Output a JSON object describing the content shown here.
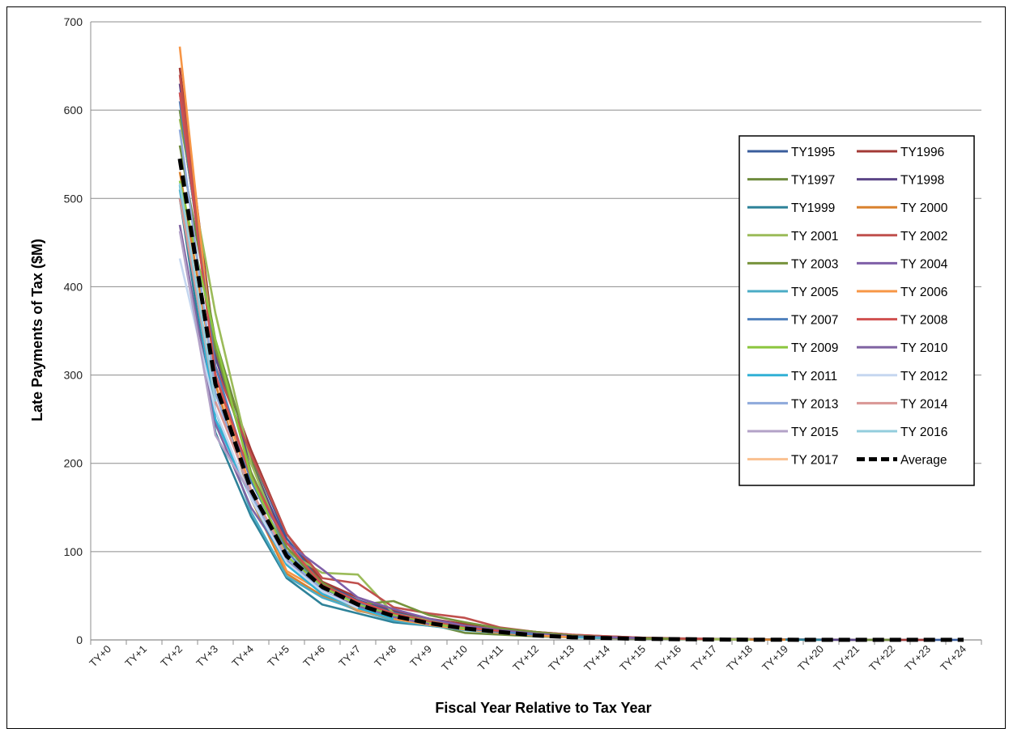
{
  "chart_data": {
    "type": "line",
    "title": "",
    "xlabel": "Fiscal Year Relative to Tax Year",
    "ylabel": "Late Payments of Tax ($M)",
    "ylim": [
      0,
      700
    ],
    "yticks": [
      0,
      100,
      200,
      300,
      400,
      500,
      600,
      700
    ],
    "grid": true,
    "legend_position": "right",
    "categories": [
      "TY+0",
      "TY+1",
      "TY+2",
      "TY+3",
      "TY+4",
      "TY+5",
      "TY+6",
      "TY+7",
      "TY+8",
      "TY+9",
      "TY+10",
      "TY+11",
      "TY+12",
      "TY+13",
      "TY+14",
      "TY+15",
      "TY+16",
      "TY+17",
      "TY+18",
      "TY+19",
      "TY+20",
      "TY+21",
      "TY+22",
      "TY+23",
      "TY+24"
    ],
    "series": [
      {
        "name": "TY1995",
        "color": "#3A5D9C",
        "dashed": false,
        "values": [
          null,
          null,
          600,
          330,
          210,
          115,
          65,
          45,
          32,
          22,
          16,
          12,
          8,
          5,
          3,
          2,
          1.5,
          1,
          0.8,
          0.5,
          0.3,
          0.2,
          0.1,
          0.1,
          0.1
        ]
      },
      {
        "name": "TY1996",
        "color": "#A33A36",
        "dashed": false,
        "values": [
          null,
          null,
          648,
          325,
          215,
          120,
          66,
          48,
          34,
          24,
          18,
          13,
          9,
          6,
          4,
          2.5,
          1.8,
          1.2,
          0.8,
          0.5,
          0.3,
          0.2,
          0.1,
          0.1,
          null
        ]
      },
      {
        "name": "TY1997",
        "color": "#6E8B3D",
        "dashed": false,
        "values": [
          null,
          null,
          560,
          340,
          205,
          105,
          60,
          42,
          28,
          18,
          8,
          6,
          4,
          3,
          2,
          1.5,
          1,
          0.6,
          0.4,
          0.3,
          0.2,
          0.1,
          0.1,
          null,
          null
        ]
      },
      {
        "name": "TY1998",
        "color": "#5B4587",
        "dashed": false,
        "values": [
          null,
          null,
          630,
          320,
          200,
          110,
          62,
          44,
          30,
          20,
          14,
          10,
          7,
          4,
          3,
          2,
          1.4,
          1,
          0.6,
          0.4,
          0.2,
          0.1,
          null,
          null,
          null
        ]
      },
      {
        "name": "TY1999",
        "color": "#2E8299",
        "dashed": false,
        "values": [
          null,
          null,
          500,
          235,
          140,
          70,
          40,
          30,
          20,
          16,
          12,
          9,
          6,
          4,
          3,
          2,
          1.2,
          0.8,
          0.5,
          0.3,
          0.2,
          null,
          null,
          null,
          null
        ]
      },
      {
        "name": "TY 2000",
        "color": "#D9812E",
        "dashed": false,
        "values": [
          null,
          null,
          530,
          290,
          160,
          75,
          50,
          33,
          25,
          18,
          12,
          9,
          6,
          4,
          3,
          2,
          1.2,
          0.8,
          0.5,
          0.3,
          null,
          null,
          null,
          null,
          null
        ]
      },
      {
        "name": "TY 2001",
        "color": "#9BBB59",
        "dashed": false,
        "values": [
          null,
          null,
          590,
          370,
          200,
          100,
          76,
          74,
          30,
          22,
          16,
          11,
          8,
          5,
          3,
          2,
          1.3,
          0.8,
          0.5,
          null,
          null,
          null,
          null,
          null,
          null
        ]
      },
      {
        "name": "TY 2002",
        "color": "#C0504D",
        "dashed": false,
        "values": [
          null,
          null,
          640,
          310,
          210,
          120,
          70,
          64,
          37,
          30,
          25,
          14,
          9,
          6,
          4,
          2.5,
          1.5,
          1,
          null,
          null,
          null,
          null,
          null,
          null,
          null
        ]
      },
      {
        "name": "TY 2003",
        "color": "#77933C",
        "dashed": false,
        "values": [
          null,
          null,
          600,
          330,
          190,
          105,
          65,
          40,
          44,
          28,
          20,
          13,
          9,
          5,
          3,
          2,
          1.2,
          null,
          null,
          null,
          null,
          null,
          null,
          null,
          null
        ]
      },
      {
        "name": "TY 2004",
        "color": "#7F5FA8",
        "dashed": false,
        "values": [
          null,
          null,
          620,
          300,
          180,
          110,
          80,
          48,
          35,
          24,
          16,
          11,
          7,
          4,
          3,
          2,
          null,
          null,
          null,
          null,
          null,
          null,
          null,
          null,
          null
        ]
      },
      {
        "name": "TY 2005",
        "color": "#4BACC6",
        "dashed": false,
        "values": [
          null,
          null,
          510,
          260,
          145,
          72,
          48,
          34,
          22,
          16,
          11,
          8,
          5,
          3,
          2,
          null,
          null,
          null,
          null,
          null,
          null,
          null,
          null,
          null,
          null
        ]
      },
      {
        "name": "TY 2006",
        "color": "#F79646",
        "dashed": false,
        "values": [
          null,
          null,
          672,
          300,
          170,
          78,
          55,
          34,
          24,
          17,
          12,
          8,
          5,
          3,
          null,
          null,
          null,
          null,
          null,
          null,
          null,
          null,
          null,
          null,
          null
        ]
      },
      {
        "name": "TY 2007",
        "color": "#4F81BD",
        "dashed": false,
        "values": [
          null,
          null,
          610,
          310,
          180,
          100,
          58,
          42,
          28,
          19,
          13,
          9,
          6,
          null,
          null,
          null,
          null,
          null,
          null,
          null,
          null,
          null,
          null,
          null,
          null
        ]
      },
      {
        "name": "TY 2008",
        "color": "#D0504F",
        "dashed": false,
        "values": [
          null,
          null,
          620,
          300,
          185,
          110,
          62,
          44,
          30,
          21,
          14,
          10,
          null,
          null,
          null,
          null,
          null,
          null,
          null,
          null,
          null,
          null,
          null,
          null,
          null
        ]
      },
      {
        "name": "TY 2009",
        "color": "#8CC63F",
        "dashed": false,
        "values": [
          null,
          null,
          520,
          340,
          185,
          95,
          60,
          40,
          28,
          19,
          13,
          null,
          null,
          null,
          null,
          null,
          null,
          null,
          null,
          null,
          null,
          null,
          null,
          null,
          null
        ]
      },
      {
        "name": "TY 2010",
        "color": "#8064A2",
        "dashed": false,
        "values": [
          null,
          null,
          470,
          245,
          150,
          90,
          55,
          38,
          26,
          18,
          null,
          null,
          null,
          null,
          null,
          null,
          null,
          null,
          null,
          null,
          null,
          null,
          null,
          null,
          null
        ]
      },
      {
        "name": "TY 2011",
        "color": "#31B0D5",
        "dashed": false,
        "values": [
          null,
          null,
          515,
          250,
          160,
          85,
          52,
          36,
          24,
          null,
          null,
          null,
          null,
          null,
          null,
          null,
          null,
          null,
          null,
          null,
          null,
          null,
          null,
          null,
          null
        ]
      },
      {
        "name": "TY 2012",
        "color": "#C5D7F0",
        "dashed": false,
        "values": [
          null,
          null,
          432,
          260,
          160,
          88,
          55,
          36,
          null,
          null,
          null,
          null,
          null,
          null,
          null,
          null,
          null,
          null,
          null,
          null,
          null,
          null,
          null,
          null,
          null
        ]
      },
      {
        "name": "TY 2013",
        "color": "#8EA9DB",
        "dashed": false,
        "values": [
          null,
          null,
          578,
          280,
          165,
          92,
          58,
          null,
          null,
          null,
          null,
          null,
          null,
          null,
          null,
          null,
          null,
          null,
          null,
          null,
          null,
          null,
          null,
          null,
          null
        ]
      },
      {
        "name": "TY 2014",
        "color": "#D99694",
        "dashed": false,
        "values": [
          null,
          null,
          500,
          270,
          170,
          95,
          null,
          null,
          null,
          null,
          null,
          null,
          null,
          null,
          null,
          null,
          null,
          null,
          null,
          null,
          null,
          null,
          null,
          null,
          null
        ]
      },
      {
        "name": "TY 2015",
        "color": "#B3A2C7",
        "dashed": false,
        "values": [
          null,
          null,
          463,
          232,
          165,
          null,
          null,
          null,
          null,
          null,
          null,
          null,
          null,
          null,
          null,
          null,
          null,
          null,
          null,
          null,
          null,
          null,
          null,
          null,
          null
        ]
      },
      {
        "name": "TY 2016",
        "color": "#93CDDD",
        "dashed": false,
        "values": [
          null,
          null,
          517,
          270,
          null,
          null,
          null,
          null,
          null,
          null,
          null,
          null,
          null,
          null,
          null,
          null,
          null,
          null,
          null,
          null,
          null,
          null,
          null,
          null,
          null
        ]
      },
      {
        "name": "TY 2017",
        "color": "#FAC090",
        "dashed": false,
        "values": [
          null,
          null,
          515,
          null,
          null,
          null,
          null,
          null,
          null,
          null,
          null,
          null,
          null,
          null,
          null,
          null,
          null,
          null,
          null,
          null,
          null,
          null,
          null,
          null,
          null
        ]
      },
      {
        "name": "Average",
        "color": "#000000",
        "dashed": true,
        "values": [
          null,
          null,
          545,
          290,
          170,
          95,
          60,
          40,
          27,
          19,
          13,
          9,
          5,
          3,
          2,
          1.2,
          0.8,
          0.5,
          0.3,
          0.2,
          0.1,
          0.1,
          0.1,
          0.1,
          0.1
        ]
      }
    ]
  }
}
